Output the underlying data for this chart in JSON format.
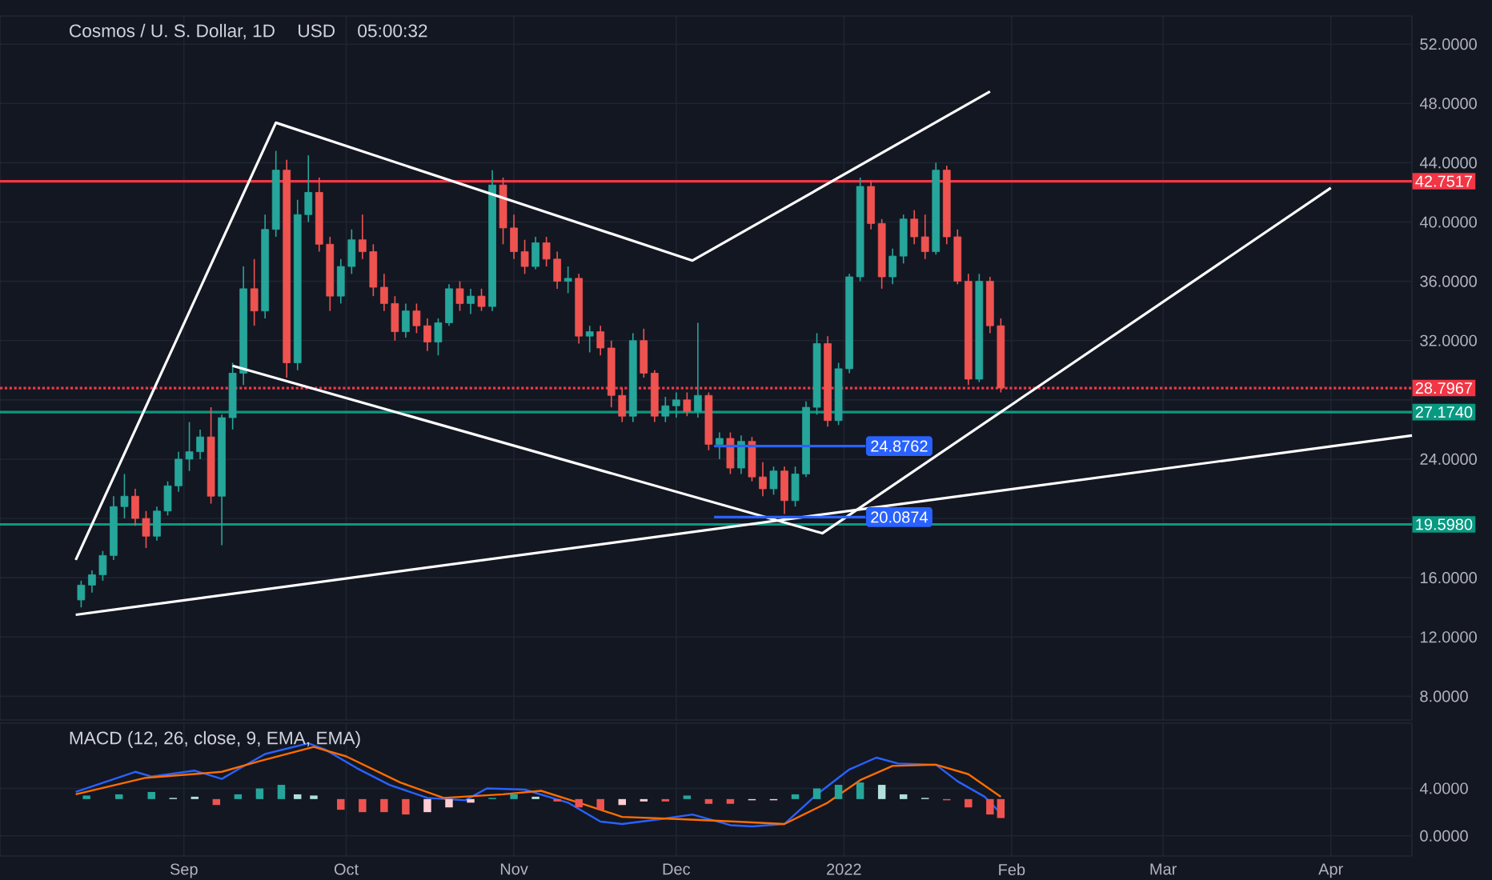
{
  "chart_data": [
    {
      "type": "candlestick",
      "title": "Cosmos / U. S. Dollar, 1D",
      "annotations": [
        "USD",
        "05:00:32",
        {
          "text": "24.8762",
          "x": "2022-01-05",
          "y": 24.8762
        },
        {
          "text": "20.0874",
          "x": "2022-01-05",
          "y": 20.0874
        }
      ],
      "x": [
        "2021-08-13",
        "2021-08-15",
        "2021-08-17",
        "2021-08-19",
        "2021-08-21",
        "2021-08-23",
        "2021-08-25",
        "2021-08-27",
        "2021-08-29",
        "2021-08-31",
        "2021-09-02",
        "2021-09-04",
        "2021-09-06",
        "2021-09-08",
        "2021-09-10",
        "2021-09-12",
        "2021-09-14",
        "2021-09-16",
        "2021-09-18",
        "2021-09-20",
        "2021-09-22",
        "2021-09-24",
        "2021-09-26",
        "2021-09-28",
        "2021-09-30",
        "2021-10-02",
        "2021-10-04",
        "2021-10-06",
        "2021-10-08",
        "2021-10-10",
        "2021-10-12",
        "2021-10-14",
        "2021-10-16",
        "2021-10-18",
        "2021-10-20",
        "2021-10-22",
        "2021-10-24",
        "2021-10-26",
        "2021-10-28",
        "2021-10-30",
        "2021-11-01",
        "2021-11-03",
        "2021-11-05",
        "2021-11-07",
        "2021-11-09",
        "2021-11-11",
        "2021-11-13",
        "2021-11-15",
        "2021-11-17",
        "2021-11-19",
        "2021-11-21",
        "2021-11-23",
        "2021-11-25",
        "2021-11-27",
        "2021-11-29",
        "2021-12-01",
        "2021-12-03",
        "2021-12-05",
        "2021-12-07",
        "2021-12-09",
        "2021-12-11",
        "2021-12-13",
        "2021-12-15",
        "2021-12-17",
        "2021-12-19",
        "2021-12-21",
        "2021-12-23",
        "2021-12-25",
        "2021-12-27",
        "2021-12-29",
        "2021-12-31",
        "2022-01-02",
        "2022-01-04",
        "2022-01-06",
        "2022-01-08",
        "2022-01-10",
        "2022-01-12",
        "2022-01-14",
        "2022-01-16",
        "2022-01-18",
        "2022-01-20",
        "2022-01-22",
        "2022-01-24",
        "2022-01-26",
        "2022-01-28",
        "2022-01-30"
      ],
      "ohlc": [
        [
          14.5,
          15.8,
          14.0,
          15.5
        ],
        [
          15.5,
          16.5,
          15.0,
          16.2
        ],
        [
          16.2,
          17.8,
          15.8,
          17.5
        ],
        [
          17.5,
          21.5,
          17.2,
          20.8
        ],
        [
          20.8,
          23.0,
          20.0,
          21.5
        ],
        [
          21.5,
          22.0,
          19.5,
          20.0
        ],
        [
          20.0,
          20.5,
          18.0,
          18.8
        ],
        [
          18.8,
          20.8,
          18.5,
          20.5
        ],
        [
          20.5,
          22.5,
          20.2,
          22.2
        ],
        [
          22.2,
          24.5,
          21.8,
          24.0
        ],
        [
          24.0,
          26.5,
          23.2,
          24.5
        ],
        [
          24.5,
          26.0,
          24.0,
          25.5
        ],
        [
          25.5,
          27.5,
          21.0,
          21.5
        ],
        [
          21.5,
          27.0,
          18.2,
          26.8
        ],
        [
          26.8,
          30.5,
          26.0,
          29.8
        ],
        [
          29.8,
          37.0,
          29.0,
          35.5
        ],
        [
          35.5,
          37.5,
          33.0,
          34.0
        ],
        [
          34.0,
          40.5,
          33.5,
          39.5
        ],
        [
          39.5,
          44.8,
          39.0,
          43.5
        ],
        [
          43.5,
          44.2,
          29.5,
          30.5
        ],
        [
          30.5,
          41.5,
          30.0,
          40.5
        ],
        [
          40.5,
          44.5,
          40.0,
          42.0
        ],
        [
          42.0,
          43.0,
          38.0,
          38.5
        ],
        [
          38.5,
          39.0,
          34.0,
          35.0
        ],
        [
          35.0,
          37.5,
          34.5,
          37.0
        ],
        [
          37.0,
          39.5,
          36.5,
          38.8
        ],
        [
          38.8,
          40.5,
          37.5,
          38.0
        ],
        [
          38.0,
          38.5,
          35.0,
          35.6
        ],
        [
          35.6,
          36.5,
          34.0,
          34.5
        ],
        [
          34.5,
          35.0,
          32.0,
          32.6
        ],
        [
          32.6,
          34.5,
          32.2,
          34.0
        ],
        [
          34.0,
          34.5,
          32.5,
          33.0
        ],
        [
          33.0,
          33.5,
          31.3,
          31.9
        ],
        [
          31.9,
          33.5,
          31.0,
          33.2
        ],
        [
          33.2,
          35.8,
          33.0,
          35.5
        ],
        [
          35.5,
          36.0,
          34.0,
          34.5
        ],
        [
          34.5,
          35.5,
          33.8,
          35.0
        ],
        [
          35.0,
          35.5,
          34.0,
          34.3
        ],
        [
          34.3,
          43.5,
          34.0,
          42.5
        ],
        [
          42.5,
          43.0,
          38.5,
          39.6
        ],
        [
          39.6,
          40.5,
          37.5,
          38.0
        ],
        [
          38.0,
          38.8,
          36.5,
          37.0
        ],
        [
          37.0,
          39.0,
          36.8,
          38.6
        ],
        [
          38.6,
          39.0,
          37.0,
          37.5
        ],
        [
          37.5,
          38.0,
          35.5,
          36.0
        ],
        [
          36.0,
          37.0,
          35.2,
          36.2
        ],
        [
          36.2,
          36.5,
          31.8,
          32.3
        ],
        [
          32.3,
          33.0,
          31.2,
          32.6
        ],
        [
          32.6,
          33.0,
          31.0,
          31.5
        ],
        [
          31.5,
          32.0,
          27.5,
          28.3
        ],
        [
          28.3,
          28.8,
          26.5,
          26.9
        ],
        [
          26.9,
          32.5,
          26.5,
          32.0
        ],
        [
          32.0,
          32.8,
          29.5,
          29.8
        ],
        [
          29.8,
          30.0,
          26.5,
          26.9
        ],
        [
          26.9,
          28.2,
          26.5,
          27.6
        ],
        [
          27.6,
          28.5,
          26.8,
          28.0
        ],
        [
          28.0,
          28.5,
          26.9,
          27.2
        ],
        [
          27.2,
          33.2,
          26.8,
          28.3
        ],
        [
          28.3,
          28.5,
          24.6,
          25.0
        ],
        [
          25.0,
          25.8,
          24.0,
          25.4
        ],
        [
          25.4,
          25.8,
          23.0,
          23.4
        ],
        [
          23.4,
          25.6,
          23.0,
          25.2
        ],
        [
          25.2,
          25.5,
          22.5,
          22.8
        ],
        [
          22.8,
          23.8,
          21.5,
          22.0
        ],
        [
          22.0,
          23.5,
          21.6,
          23.2
        ],
        [
          23.2,
          23.5,
          20.3,
          21.2
        ],
        [
          21.2,
          23.5,
          20.8,
          23.0
        ],
        [
          23.0,
          27.9,
          22.8,
          27.5
        ],
        [
          27.5,
          32.5,
          27.0,
          31.8
        ],
        [
          31.8,
          32.3,
          26.2,
          26.6
        ],
        [
          26.6,
          30.5,
          26.3,
          30.1
        ],
        [
          30.1,
          36.5,
          29.8,
          36.3
        ],
        [
          36.3,
          43.0,
          36.0,
          42.4
        ],
        [
          42.4,
          42.8,
          39.5,
          39.9
        ],
        [
          39.9,
          40.2,
          35.5,
          36.3
        ],
        [
          36.3,
          38.2,
          35.8,
          37.7
        ],
        [
          37.7,
          40.5,
          37.2,
          40.2
        ],
        [
          40.2,
          40.8,
          38.5,
          39.0
        ],
        [
          39.0,
          40.5,
          37.5,
          38.0
        ],
        [
          38.0,
          44.0,
          37.8,
          43.5
        ],
        [
          43.5,
          43.8,
          38.5,
          39.0
        ],
        [
          39.0,
          39.5,
          35.8,
          36.0
        ],
        [
          36.0,
          36.5,
          29.0,
          29.4
        ],
        [
          29.4,
          36.5,
          29.2,
          36.0
        ],
        [
          36.0,
          36.3,
          32.5,
          33.0
        ],
        [
          33.0,
          33.5,
          28.5,
          28.8
        ]
      ],
      "series": [
        {
          "type": "line",
          "color": "#ffffff",
          "x": [
            "2021-08-12",
            "2021-09-18",
            "2021-12-04",
            "2022-01-28"
          ],
          "values": [
            17.2,
            46.7,
            37.4,
            48.8
          ]
        },
        {
          "type": "line",
          "color": "#ffffff",
          "x": [
            "2021-09-10",
            "2021-12-28",
            "2022-04-01"
          ],
          "values": [
            30.3,
            19.0,
            42.3
          ]
        },
        {
          "type": "line",
          "color": "#ffffff",
          "x": [
            "2021-08-12",
            "2022-04-16"
          ],
          "values": [
            13.5,
            25.6
          ]
        },
        {
          "type": "line",
          "color": "#2962ff",
          "x": [
            "2021-12-08",
            "2022-01-05"
          ],
          "values": [
            24.8762,
            24.8762
          ]
        },
        {
          "type": "line",
          "color": "#2962ff",
          "x": [
            "2021-12-08",
            "2022-01-05"
          ],
          "values": [
            20.0874,
            20.0874
          ]
        }
      ],
      "ref_lines": [
        {
          "axis": "y",
          "value": 42.7517,
          "label": "42.7517",
          "color": "#f23645"
        },
        {
          "axis": "y",
          "value": 28.7967,
          "label": "28.7967",
          "color": "#f23645",
          "line_style": "dotted"
        },
        {
          "axis": "y",
          "value": 27.174,
          "label": "27.1740",
          "color": "#089981"
        },
        {
          "axis": "y",
          "value": 19.598,
          "label": "19.5980",
          "color": "#089981"
        }
      ],
      "xlim": [
        "2021-07-29",
        "2022-04-16"
      ],
      "ylim": [
        6.4,
        53.9
      ],
      "xticks": [
        {
          "value": "2021-09-01",
          "label": null
        },
        {
          "value": "2021-10-01",
          "label": null
        },
        {
          "value": "2021-11-01",
          "label": null
        },
        {
          "value": "2021-12-01",
          "label": null
        },
        {
          "value": "2022-01-01",
          "label": null
        },
        {
          "value": "2022-02-01",
          "label": null
        },
        {
          "value": "2022-03-01",
          "label": null
        },
        {
          "value": "2022-04-01",
          "label": null
        }
      ],
      "yticks": [
        {
          "value": 8,
          "label": "8.0000"
        },
        {
          "value": 12,
          "label": "12.0000"
        },
        {
          "value": 16,
          "label": "16.0000"
        },
        {
          "value": 20,
          "label": null
        },
        {
          "value": 24,
          "label": "24.0000"
        },
        {
          "value": 28,
          "label": null
        },
        {
          "value": 32,
          "label": "32.0000"
        },
        {
          "value": 36,
          "label": "36.0000"
        },
        {
          "value": 40,
          "label": "40.0000"
        },
        {
          "value": 44,
          "label": "44.0000"
        },
        {
          "value": 48,
          "label": "48.0000"
        },
        {
          "value": 52,
          "label": "52.0000"
        }
      ],
      "tick_labels": "y",
      "grid": true
    },
    {
      "type": "line",
      "title": "MACD (12, 26, close, 9, EMA, EMA)",
      "series": [
        {
          "color": "#2962ff",
          "x": [
            "2021-08-12",
            "2021-08-23",
            "2021-08-26",
            "2021-09-03",
            "2021-09-08",
            "2021-09-11",
            "2021-09-16",
            "2021-09-24",
            "2021-09-27",
            "2021-10-03",
            "2021-10-09",
            "2021-10-16",
            "2021-10-23",
            "2021-10-27",
            "2021-11-03",
            "2021-11-11",
            "2021-11-17",
            "2021-11-21",
            "2021-11-28",
            "2021-12-04",
            "2021-12-11",
            "2021-12-15",
            "2021-12-21",
            "2021-12-27",
            "2022-01-02",
            "2022-01-07",
            "2022-01-11",
            "2022-01-18",
            "2022-01-22",
            "2022-01-27",
            "2022-01-30"
          ],
          "values": [
            3.7,
            5.4,
            5.0,
            5.5,
            4.8,
            5.6,
            6.9,
            7.8,
            7.3,
            5.7,
            4.3,
            3.2,
            3.0,
            4.0,
            3.9,
            2.8,
            1.2,
            1.0,
            1.4,
            1.8,
            0.9,
            0.8,
            1.0,
            3.5,
            5.6,
            6.6,
            6.1,
            6.0,
            4.6,
            3.3,
            1.9
          ]
        },
        {
          "color": "#ff6d00",
          "x": [
            "2021-08-12",
            "2021-08-25",
            "2021-09-08",
            "2021-09-15",
            "2021-09-25",
            "2021-10-01",
            "2021-10-11",
            "2021-10-19",
            "2021-10-30",
            "2021-11-06",
            "2021-11-13",
            "2021-11-21",
            "2021-12-02",
            "2021-12-12",
            "2021-12-21",
            "2021-12-29",
            "2022-01-04",
            "2022-01-10",
            "2022-01-18",
            "2022-01-24",
            "2022-01-30"
          ],
          "values": [
            3.5,
            4.9,
            5.4,
            6.3,
            7.5,
            6.7,
            4.5,
            3.2,
            3.5,
            3.8,
            2.8,
            1.6,
            1.4,
            1.2,
            1.0,
            2.8,
            4.7,
            5.9,
            6.0,
            5.2,
            3.3
          ]
        },
        {
          "type": "bar",
          "x": [
            "2021-08-14",
            "2021-08-20",
            "2021-08-26",
            "2021-08-30",
            "2021-09-03",
            "2021-09-07",
            "2021-09-11",
            "2021-09-15",
            "2021-09-19",
            "2021-09-22",
            "2021-09-25",
            "2021-09-30",
            "2021-10-04",
            "2021-10-08",
            "2021-10-12",
            "2021-10-16",
            "2021-10-20",
            "2021-10-24",
            "2021-10-28",
            "2021-11-01",
            "2021-11-05",
            "2021-11-09",
            "2021-11-13",
            "2021-11-17",
            "2021-11-21",
            "2021-11-25",
            "2021-11-29",
            "2021-12-03",
            "2021-12-07",
            "2021-12-11",
            "2021-12-15",
            "2021-12-19",
            "2021-12-23",
            "2021-12-27",
            "2021-12-31",
            "2022-01-04",
            "2022-01-08",
            "2022-01-12",
            "2022-01-16",
            "2022-01-20",
            "2022-01-24",
            "2022-01-28",
            "2022-01-30"
          ],
          "values": [
            0.3,
            0.4,
            0.6,
            0.1,
            0.2,
            -0.5,
            0.4,
            0.9,
            1.2,
            0.4,
            0.3,
            -0.9,
            -1.1,
            -1.1,
            -1.3,
            -1.1,
            -0.7,
            -0.3,
            0.1,
            0.4,
            0.2,
            -0.2,
            -0.7,
            -0.9,
            -0.5,
            -0.2,
            -0.2,
            0.3,
            -0.4,
            -0.4,
            -0.1,
            -0.1,
            0.4,
            0.9,
            1.2,
            1.4,
            1.2,
            0.4,
            0.1,
            -0.1,
            -0.7,
            -1.3,
            -1.6
          ],
          "base": [
            3.1,
            3.1,
            3.1,
            3.1,
            3.1,
            3.1,
            3.1,
            3.1,
            3.1,
            3.1,
            3.1,
            3.1,
            3.1,
            3.1,
            3.1,
            3.1,
            3.1,
            3.1,
            3.1,
            3.1,
            3.1,
            3.1,
            3.1,
            3.1,
            3.1,
            3.1,
            3.1,
            3.1,
            3.1,
            3.1,
            3.1,
            3.1,
            3.1,
            3.1,
            3.1,
            3.1,
            3.1,
            3.1,
            3.1,
            3.1,
            3.1,
            3.1,
            3.1
          ],
          "colors": [
            "#26a69a",
            "#26a69a",
            "#26a69a",
            "#b2dfdb",
            "#b2dfdb",
            "#ef5350",
            "#26a69a",
            "#26a69a",
            "#26a69a",
            "#b2dfdb",
            "#b2dfdb",
            "#ef5350",
            "#ef5350",
            "#ef5350",
            "#ef5350",
            "#ffcdd2",
            "#ffcdd2",
            "#ffcdd2",
            "#26a69a",
            "#26a69a",
            "#b2dfdb",
            "#ef5350",
            "#ef5350",
            "#ef5350",
            "#ffcdd2",
            "#ffcdd2",
            "#ef5350",
            "#26a69a",
            "#ef5350",
            "#ef5350",
            "#ffcdd2",
            "#ffcdd2",
            "#26a69a",
            "#26a69a",
            "#26a69a",
            "#26a69a",
            "#b2dfdb",
            "#b2dfdb",
            "#b2dfdb",
            "#ef5350",
            "#ef5350",
            "#ef5350",
            "#ef5350"
          ]
        }
      ],
      "xlim": [
        "2021-07-29",
        "2022-04-16"
      ],
      "ylim": [
        -1.7,
        9.5
      ],
      "xticks": [
        {
          "value": "2021-09-01",
          "label": "Sep"
        },
        {
          "value": "2021-10-01",
          "label": "Oct"
        },
        {
          "value": "2021-11-01",
          "label": "Nov"
        },
        {
          "value": "2021-12-01",
          "label": "Dec"
        },
        {
          "value": "2022-01-01",
          "label": "2022"
        },
        {
          "value": "2022-02-01",
          "label": "Feb"
        },
        {
          "value": "2022-03-01",
          "label": "Mar"
        },
        {
          "value": "2022-04-01",
          "label": "Apr"
        }
      ],
      "yticks": [
        {
          "value": 0,
          "label": "0.0000"
        },
        {
          "value": 4,
          "label": "4.0000"
        }
      ],
      "grid": true
    }
  ]
}
